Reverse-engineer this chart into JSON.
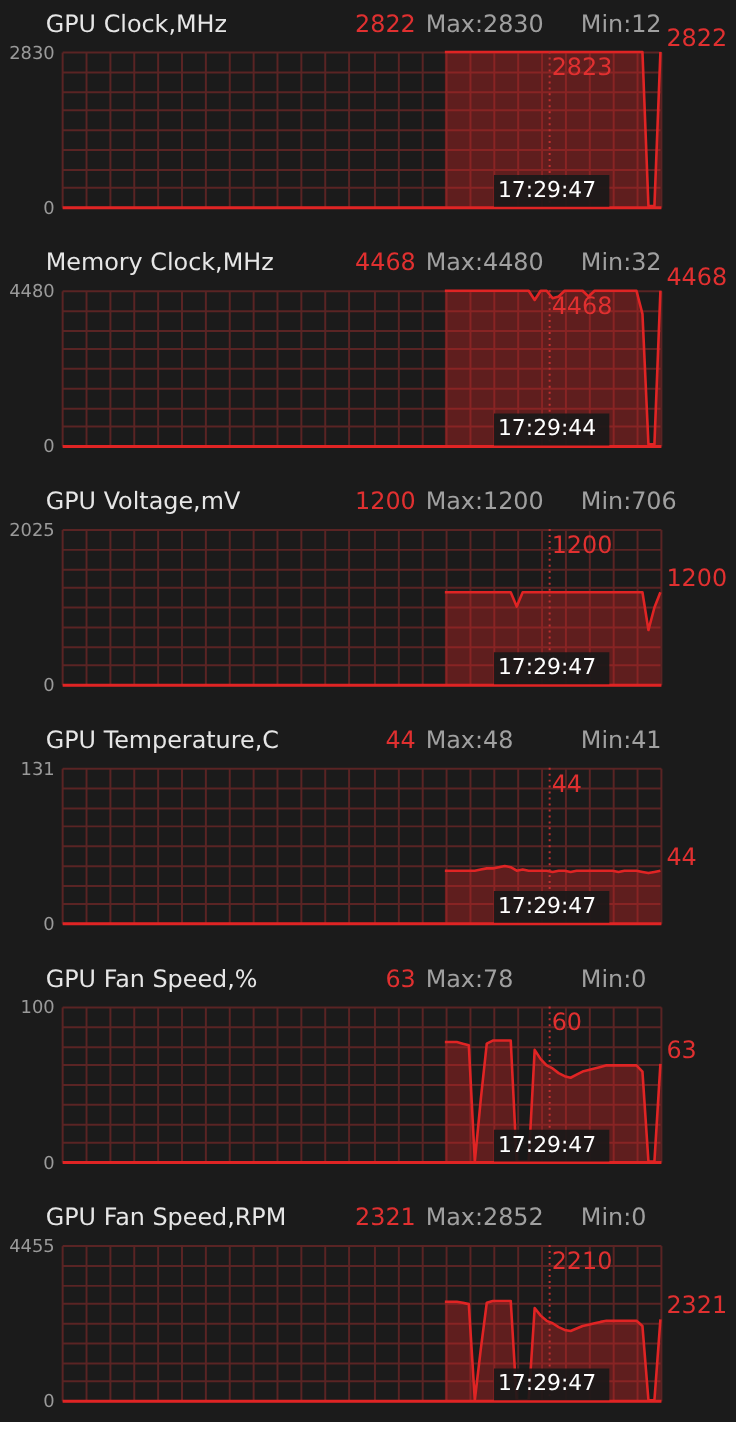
{
  "chart_data": [
    {
      "type": "area",
      "title": "GPU Clock,MHz",
      "color": "#e02424",
      "categories": [
        null,
        null,
        null,
        null,
        null,
        null,
        null,
        null,
        null,
        null,
        null,
        null,
        null,
        null,
        null,
        null,
        null,
        null,
        null,
        null,
        null,
        null,
        null,
        null,
        null,
        null,
        null,
        null,
        null,
        null,
        null,
        null,
        null,
        null,
        null,
        null,
        null,
        null,
        null,
        null,
        null,
        null,
        null,
        null,
        null,
        null,
        null,
        null,
        null,
        null,
        null,
        null,
        null,
        null,
        null,
        null,
        null,
        null,
        null,
        null,
        null,
        null,
        null,
        null,
        null,
        null,
        null,
        null,
        null,
        null,
        null,
        null,
        null,
        null,
        null,
        null,
        null,
        null,
        null,
        null,
        null,
        null,
        null,
        null,
        null,
        null,
        null,
        null,
        null,
        null,
        null,
        null,
        null,
        null,
        null,
        null,
        null,
        null,
        null,
        null,
        null
      ],
      "values": [
        null,
        null,
        null,
        null,
        null,
        null,
        null,
        null,
        null,
        null,
        null,
        null,
        null,
        null,
        null,
        null,
        null,
        null,
        null,
        null,
        null,
        null,
        null,
        null,
        null,
        null,
        null,
        null,
        null,
        null,
        null,
        null,
        null,
        null,
        null,
        null,
        null,
        null,
        null,
        null,
        null,
        null,
        null,
        null,
        null,
        null,
        null,
        null,
        null,
        null,
        null,
        null,
        null,
        null,
        null,
        null,
        null,
        null,
        null,
        null,
        null,
        null,
        null,
        null,
        2823,
        2823,
        2823,
        2823,
        2823,
        2823,
        2823,
        2823,
        2823,
        2823,
        2823,
        2823,
        2823,
        2823,
        2823,
        2823,
        2823,
        2823,
        2823,
        2823,
        2823,
        2823,
        2823,
        2823,
        2823,
        2823,
        2823,
        2823,
        2823,
        2823,
        2823,
        2823,
        2823,
        2823,
        12,
        12,
        2822
      ],
      "ylim": [
        0,
        2830
      ],
      "yticks": [
        0,
        {
          "value": 353.75,
          "label": null
        },
        {
          "value": 707.5,
          "label": null
        },
        {
          "value": 1061.25,
          "label": null
        },
        {
          "value": 1415,
          "label": null
        },
        {
          "value": 1768.75,
          "label": null
        },
        {
          "value": 2122.5,
          "label": null
        },
        {
          "value": 2476.25,
          "label": null
        },
        2830
      ],
      "tick_labels": "y",
      "grid": true,
      "ref_lines": [
        {
          "axis": "x",
          "line_style": "dotted",
          "color": "#c03030"
        }
      ],
      "annotations": [
        "2822",
        "Max:2830",
        "Min:12",
        "17:29:47",
        "2823",
        "2822"
      ]
    },
    {
      "type": "area",
      "title": "Memory Clock,MHz",
      "color": "#e02424",
      "categories": [
        null,
        null,
        null,
        null,
        null,
        null,
        null,
        null,
        null,
        null,
        null,
        null,
        null,
        null,
        null,
        null,
        null,
        null,
        null,
        null,
        null,
        null,
        null,
        null,
        null,
        null,
        null,
        null,
        null,
        null,
        null,
        null,
        null,
        null,
        null,
        null,
        null,
        null,
        null,
        null,
        null,
        null,
        null,
        null,
        null,
        null,
        null,
        null,
        null,
        null,
        null,
        null,
        null,
        null,
        null,
        null,
        null,
        null,
        null,
        null,
        null,
        null,
        null,
        null,
        null,
        null,
        null,
        null,
        null,
        null,
        null,
        null,
        null,
        null,
        null,
        null,
        null,
        null,
        null,
        null,
        null,
        null,
        null,
        null,
        null,
        null,
        null,
        null,
        null,
        null,
        null,
        null,
        null,
        null,
        null,
        null,
        null,
        null,
        null,
        null,
        null
      ],
      "values": [
        null,
        null,
        null,
        null,
        null,
        null,
        null,
        null,
        null,
        null,
        null,
        null,
        null,
        null,
        null,
        null,
        null,
        null,
        null,
        null,
        null,
        null,
        null,
        null,
        null,
        null,
        null,
        null,
        null,
        null,
        null,
        null,
        null,
        null,
        null,
        null,
        null,
        null,
        null,
        null,
        null,
        null,
        null,
        null,
        null,
        null,
        null,
        null,
        null,
        null,
        null,
        null,
        null,
        null,
        null,
        null,
        null,
        null,
        null,
        null,
        null,
        null,
        null,
        null,
        4468,
        4468,
        4468,
        4468,
        4468,
        4468,
        4468,
        4468,
        4468,
        4468,
        4468,
        4468,
        4468,
        4468,
        4468,
        4200,
        4468,
        4468,
        4250,
        4300,
        4468,
        4468,
        4468,
        4468,
        4300,
        4468,
        4468,
        4468,
        4468,
        4468,
        4468,
        4468,
        4468,
        3800,
        32,
        32,
        4468
      ],
      "ylim": [
        0,
        4480
      ],
      "yticks": [
        0,
        {
          "value": 560,
          "label": null
        },
        {
          "value": 1120,
          "label": null
        },
        {
          "value": 1680,
          "label": null
        },
        {
          "value": 2240,
          "label": null
        },
        {
          "value": 2800,
          "label": null
        },
        {
          "value": 3360,
          "label": null
        },
        {
          "value": 3920,
          "label": null
        },
        4480
      ],
      "tick_labels": "y",
      "grid": true,
      "ref_lines": [
        {
          "axis": "x",
          "line_style": "dotted",
          "color": "#c03030"
        }
      ],
      "annotations": [
        "4468",
        "Max:4480",
        "Min:32",
        "17:29:44",
        "4468",
        "4468"
      ]
    },
    {
      "type": "area",
      "title": "GPU Voltage,mV",
      "color": "#e02424",
      "categories": [
        null,
        null,
        null,
        null,
        null,
        null,
        null,
        null,
        null,
        null,
        null,
        null,
        null,
        null,
        null,
        null,
        null,
        null,
        null,
        null,
        null,
        null,
        null,
        null,
        null,
        null,
        null,
        null,
        null,
        null,
        null,
        null,
        null,
        null,
        null,
        null,
        null,
        null,
        null,
        null,
        null,
        null,
        null,
        null,
        null,
        null,
        null,
        null,
        null,
        null,
        null,
        null,
        null,
        null,
        null,
        null,
        null,
        null,
        null,
        null,
        null,
        null,
        null,
        null,
        null,
        null,
        null,
        null,
        null,
        null,
        null,
        null,
        null,
        null,
        null,
        null,
        null,
        null,
        null,
        null,
        null,
        null,
        null,
        null,
        null,
        null,
        null,
        null,
        null,
        null,
        null,
        null,
        null,
        null,
        null,
        null,
        null,
        null,
        null,
        null,
        null
      ],
      "values": [
        null,
        null,
        null,
        null,
        null,
        null,
        null,
        null,
        null,
        null,
        null,
        null,
        null,
        null,
        null,
        null,
        null,
        null,
        null,
        null,
        null,
        null,
        null,
        null,
        null,
        null,
        null,
        null,
        null,
        null,
        null,
        null,
        null,
        null,
        null,
        null,
        null,
        null,
        null,
        null,
        null,
        null,
        null,
        null,
        null,
        null,
        null,
        null,
        null,
        null,
        null,
        null,
        null,
        null,
        null,
        null,
        null,
        null,
        null,
        null,
        null,
        null,
        null,
        null,
        1200,
        1200,
        1200,
        1200,
        1200,
        1200,
        1200,
        1200,
        1200,
        1200,
        1200,
        1200,
        1012,
        1200,
        1200,
        1200,
        1200,
        1200,
        1200,
        1200,
        1200,
        1200,
        1200,
        1200,
        1200,
        1200,
        1200,
        1200,
        1200,
        1200,
        1200,
        1200,
        1200,
        1200,
        706,
        1000,
        1200
      ],
      "ylim": [
        0,
        2025
      ],
      "yticks": [
        0,
        {
          "value": 253.125,
          "label": null
        },
        {
          "value": 506.25,
          "label": null
        },
        {
          "value": 759.375,
          "label": null
        },
        {
          "value": 1012.5,
          "label": null
        },
        {
          "value": 1265.625,
          "label": null
        },
        {
          "value": 1518.75,
          "label": null
        },
        {
          "value": 1771.875,
          "label": null
        },
        2025
      ],
      "tick_labels": "y",
      "grid": true,
      "ref_lines": [
        {
          "axis": "x",
          "line_style": "dotted",
          "color": "#c03030"
        }
      ],
      "annotations": [
        "1200",
        "Max:1200",
        "Min:706",
        "17:29:47",
        "1200",
        "1200"
      ]
    },
    {
      "type": "area",
      "title": "GPU Temperature,C",
      "color": "#e02424",
      "categories": [
        null,
        null,
        null,
        null,
        null,
        null,
        null,
        null,
        null,
        null,
        null,
        null,
        null,
        null,
        null,
        null,
        null,
        null,
        null,
        null,
        null,
        null,
        null,
        null,
        null,
        null,
        null,
        null,
        null,
        null,
        null,
        null,
        null,
        null,
        null,
        null,
        null,
        null,
        null,
        null,
        null,
        null,
        null,
        null,
        null,
        null,
        null,
        null,
        null,
        null,
        null,
        null,
        null,
        null,
        null,
        null,
        null,
        null,
        null,
        null,
        null,
        null,
        null,
        null,
        null,
        null,
        null,
        null,
        null,
        null,
        null,
        null,
        null,
        null,
        null,
        null,
        null,
        null,
        null,
        null,
        null,
        null,
        null,
        null,
        null,
        null,
        null,
        null,
        null,
        null,
        null,
        null,
        null,
        null,
        null,
        null,
        null,
        null,
        null,
        null,
        null
      ],
      "values": [
        null,
        null,
        null,
        null,
        null,
        null,
        null,
        null,
        null,
        null,
        null,
        null,
        null,
        null,
        null,
        null,
        null,
        null,
        null,
        null,
        null,
        null,
        null,
        null,
        null,
        null,
        null,
        null,
        null,
        null,
        null,
        null,
        null,
        null,
        null,
        null,
        null,
        null,
        null,
        null,
        null,
        null,
        null,
        null,
        null,
        null,
        null,
        null,
        null,
        null,
        null,
        null,
        null,
        null,
        null,
        null,
        null,
        null,
        null,
        null,
        null,
        null,
        null,
        null,
        44,
        44,
        44,
        44,
        44,
        44,
        45,
        46,
        46,
        47,
        48,
        47,
        44,
        45,
        44,
        44,
        44,
        44,
        43,
        44,
        44,
        43,
        44,
        44,
        44,
        44,
        44,
        44,
        44,
        43,
        44,
        44,
        44,
        43,
        42,
        43,
        44
      ],
      "ylim": [
        0,
        131
      ],
      "yticks": [
        0,
        {
          "value": 16.375,
          "label": null
        },
        {
          "value": 32.75,
          "label": null
        },
        {
          "value": 49.125,
          "label": null
        },
        {
          "value": 65.5,
          "label": null
        },
        {
          "value": 81.875,
          "label": null
        },
        {
          "value": 98.25,
          "label": null
        },
        {
          "value": 114.625,
          "label": null
        },
        131
      ],
      "tick_labels": "y",
      "grid": true,
      "ref_lines": [
        {
          "axis": "x",
          "line_style": "dotted",
          "color": "#c03030"
        }
      ],
      "annotations": [
        "44",
        "Max:48",
        "Min:41",
        "17:29:47",
        "44",
        "44"
      ]
    },
    {
      "type": "area",
      "title": "GPU Fan Speed,%",
      "color": "#e02424",
      "categories": [
        null,
        null,
        null,
        null,
        null,
        null,
        null,
        null,
        null,
        null,
        null,
        null,
        null,
        null,
        null,
        null,
        null,
        null,
        null,
        null,
        null,
        null,
        null,
        null,
        null,
        null,
        null,
        null,
        null,
        null,
        null,
        null,
        null,
        null,
        null,
        null,
        null,
        null,
        null,
        null,
        null,
        null,
        null,
        null,
        null,
        null,
        null,
        null,
        null,
        null,
        null,
        null,
        null,
        null,
        null,
        null,
        null,
        null,
        null,
        null,
        null,
        null,
        null,
        null,
        null,
        null,
        null,
        null,
        null,
        null,
        null,
        null,
        null,
        null,
        null,
        null,
        null,
        null,
        null,
        null,
        null,
        null,
        null,
        null,
        null,
        null,
        null,
        null,
        null,
        null,
        null,
        null,
        null,
        null,
        null,
        null,
        null,
        null,
        null,
        null,
        null
      ],
      "values": [
        null,
        null,
        null,
        null,
        null,
        null,
        null,
        null,
        null,
        null,
        null,
        null,
        null,
        null,
        null,
        null,
        null,
        null,
        null,
        null,
        null,
        null,
        null,
        null,
        null,
        null,
        null,
        null,
        null,
        null,
        null,
        null,
        null,
        null,
        null,
        null,
        null,
        null,
        null,
        null,
        null,
        null,
        null,
        null,
        null,
        null,
        null,
        null,
        null,
        null,
        null,
        null,
        null,
        null,
        null,
        null,
        null,
        null,
        null,
        null,
        null,
        null,
        null,
        null,
        77,
        77,
        77,
        76,
        75,
        0,
        40,
        76,
        78,
        78,
        78,
        78,
        0,
        0,
        0,
        72,
        66,
        62,
        60,
        57,
        55,
        54,
        56,
        58,
        59,
        60,
        61,
        62,
        62,
        62,
        62,
        62,
        62,
        58,
        0,
        0,
        63
      ],
      "ylim": [
        0,
        100
      ],
      "yticks": [
        0,
        {
          "value": 12.5,
          "label": null
        },
        {
          "value": 25,
          "label": null
        },
        {
          "value": 37.5,
          "label": null
        },
        {
          "value": 50,
          "label": null
        },
        {
          "value": 62.5,
          "label": null
        },
        {
          "value": 75,
          "label": null
        },
        {
          "value": 87.5,
          "label": null
        },
        100
      ],
      "tick_labels": "y",
      "grid": true,
      "ref_lines": [
        {
          "axis": "x",
          "line_style": "dotted",
          "color": "#c03030"
        }
      ],
      "annotations": [
        "63",
        "Max:78",
        "Min:0",
        "17:29:47",
        "60",
        "63"
      ]
    },
    {
      "type": "area",
      "title": "GPU Fan Speed,RPM",
      "color": "#e02424",
      "categories": [
        null,
        null,
        null,
        null,
        null,
        null,
        null,
        null,
        null,
        null,
        null,
        null,
        null,
        null,
        null,
        null,
        null,
        null,
        null,
        null,
        null,
        null,
        null,
        null,
        null,
        null,
        null,
        null,
        null,
        null,
        null,
        null,
        null,
        null,
        null,
        null,
        null,
        null,
        null,
        null,
        null,
        null,
        null,
        null,
        null,
        null,
        null,
        null,
        null,
        null,
        null,
        null,
        null,
        null,
        null,
        null,
        null,
        null,
        null,
        null,
        null,
        null,
        null,
        null,
        null,
        null,
        null,
        null,
        null,
        null,
        null,
        null,
        null,
        null,
        null,
        null,
        null,
        null,
        null,
        null,
        null,
        null,
        null,
        null,
        null,
        null,
        null,
        null,
        null,
        null,
        null,
        null,
        null,
        null,
        null,
        null,
        null,
        null,
        null,
        null,
        null
      ],
      "values": [
        null,
        null,
        null,
        null,
        null,
        null,
        null,
        null,
        null,
        null,
        null,
        null,
        null,
        null,
        null,
        null,
        null,
        null,
        null,
        null,
        null,
        null,
        null,
        null,
        null,
        null,
        null,
        null,
        null,
        null,
        null,
        null,
        null,
        null,
        null,
        null,
        null,
        null,
        null,
        null,
        null,
        null,
        null,
        null,
        null,
        null,
        null,
        null,
        null,
        null,
        null,
        null,
        null,
        null,
        null,
        null,
        null,
        null,
        null,
        null,
        null,
        null,
        null,
        null,
        2830,
        2830,
        2830,
        2800,
        2760,
        0,
        1470,
        2800,
        2852,
        2852,
        2852,
        2852,
        0,
        0,
        0,
        2650,
        2430,
        2280,
        2210,
        2100,
        2020,
        1990,
        2060,
        2130,
        2170,
        2210,
        2250,
        2280,
        2280,
        2280,
        2280,
        2280,
        2280,
        2130,
        0,
        0,
        2321
      ],
      "ylim": [
        0,
        4455
      ],
      "yticks": [
        0,
        {
          "value": 556.875,
          "label": null
        },
        {
          "value": 1113.75,
          "label": null
        },
        {
          "value": 1670.625,
          "label": null
        },
        {
          "value": 2227.5,
          "label": null
        },
        {
          "value": 2784.375,
          "label": null
        },
        {
          "value": 3341.25,
          "label": null
        },
        {
          "value": 3898.125,
          "label": null
        },
        4455
      ],
      "tick_labels": "y",
      "grid": true,
      "ref_lines": [
        {
          "axis": "x",
          "line_style": "dotted",
          "color": "#c03030"
        }
      ],
      "annotations": [
        "2321",
        "Max:2852",
        "Min:0",
        "17:29:47",
        "2210",
        "2321"
      ]
    }
  ]
}
